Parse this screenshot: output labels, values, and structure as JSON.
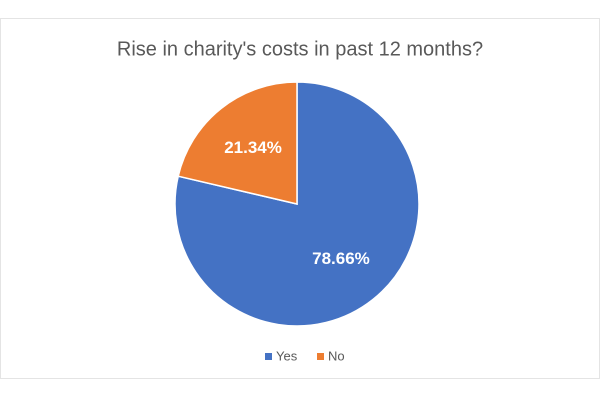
{
  "chart_data": {
    "type": "pie",
    "title": "Rise in charity's costs in past 12 months?",
    "categories": [
      "Yes",
      "No"
    ],
    "series": [
      {
        "name": "Rise in charity's costs",
        "values": [
          78.66,
          21.34
        ],
        "value_labels": [
          "78.66%",
          "21.34%"
        ]
      }
    ],
    "colors": [
      "#4472c4",
      "#ed7d31"
    ],
    "legend": "bottom"
  }
}
